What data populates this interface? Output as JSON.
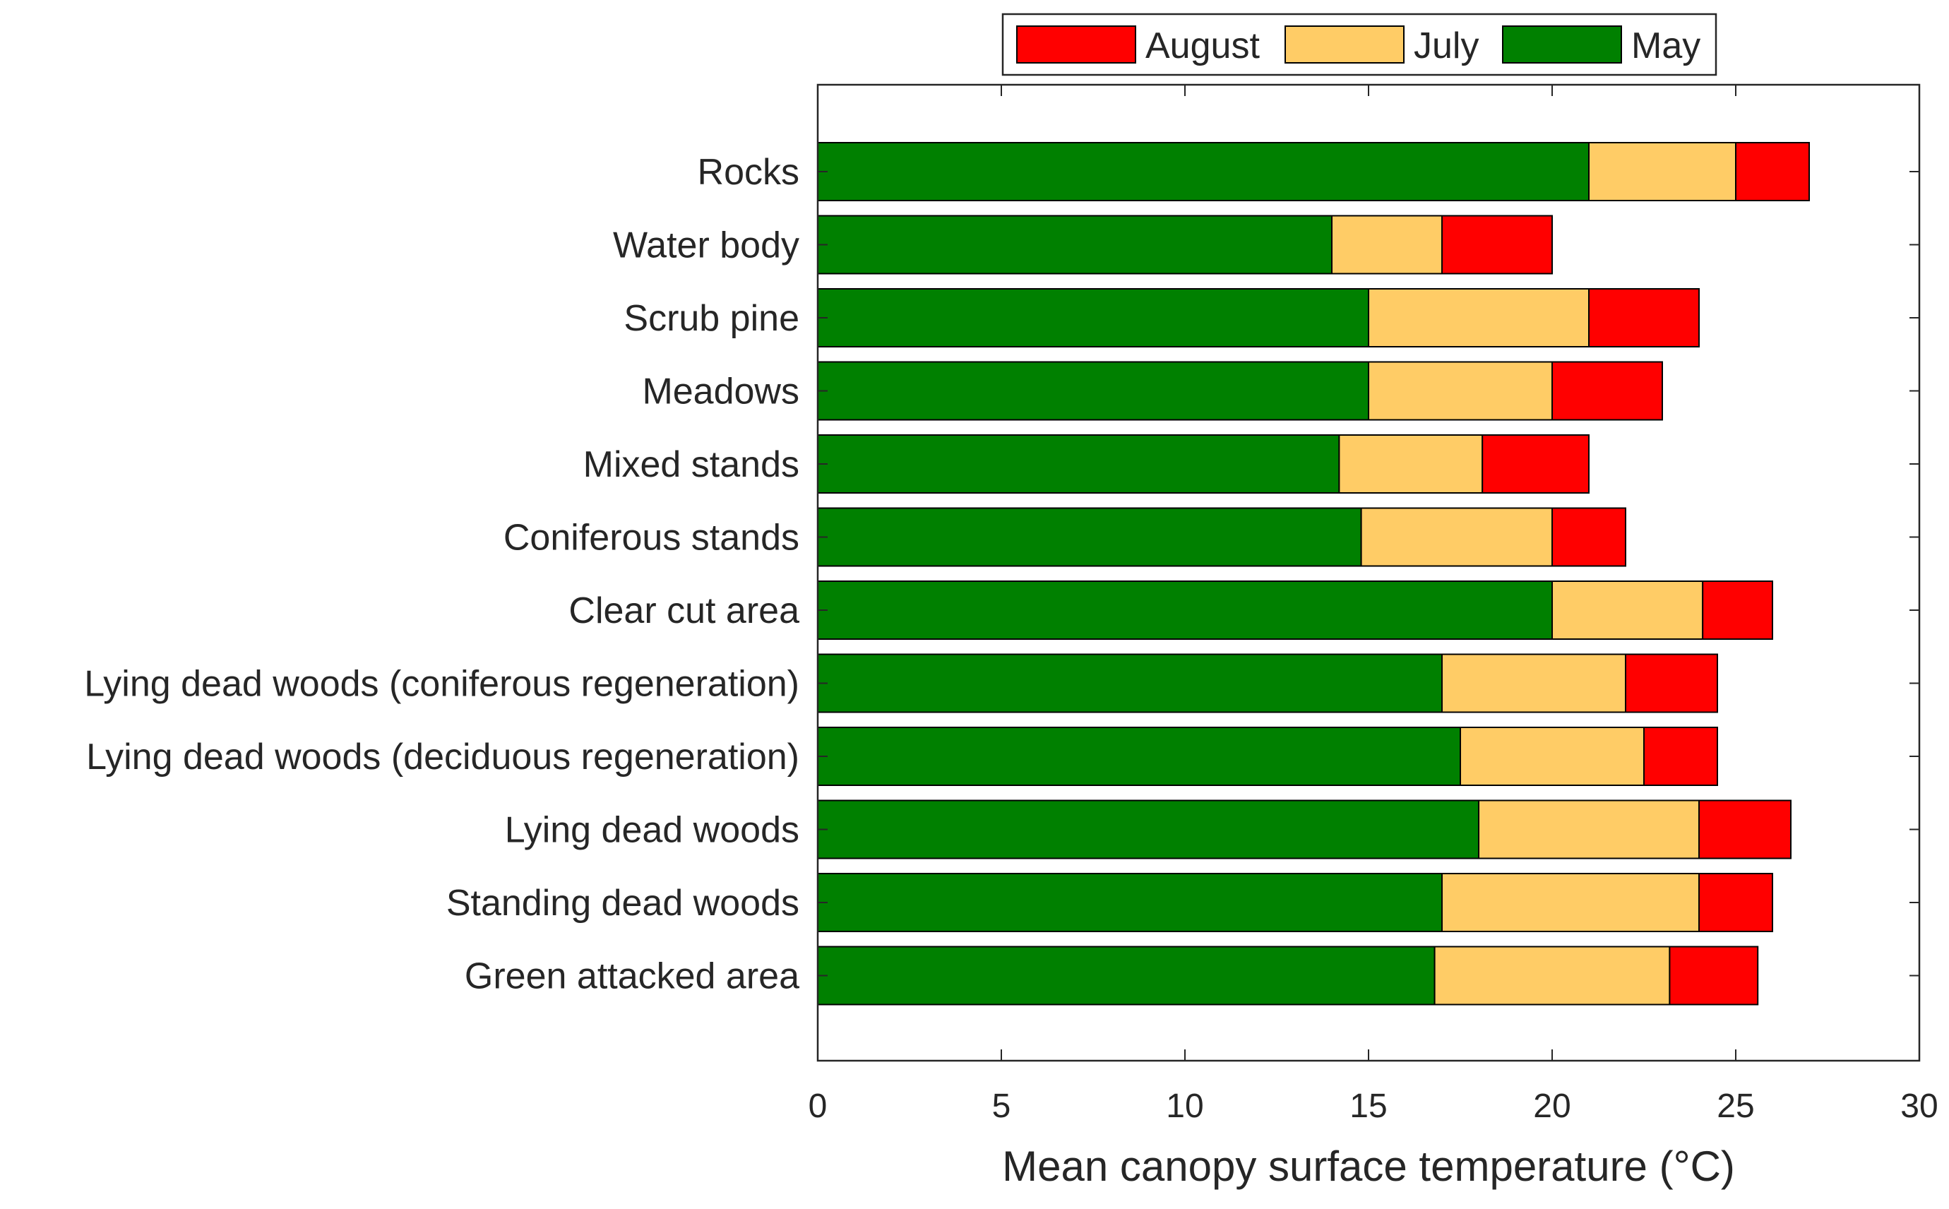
{
  "chart_data": {
    "type": "bar",
    "orientation": "horizontal",
    "stacked": true,
    "categories": [
      "Rocks",
      "Water body",
      "Scrub pine",
      "Meadows",
      "Mixed stands",
      "Coniferous stands",
      "Clear cut area",
      "Lying dead woods (coniferous regeneration)",
      "Lying dead woods (deciduous regeneration)",
      "Lying dead woods",
      "Standing dead woods",
      "Green attacked area"
    ],
    "series": [
      {
        "name": "May",
        "color": "#008000",
        "values": [
          21,
          14,
          15,
          15,
          14.2,
          14.8,
          20,
          17,
          17.5,
          18,
          17,
          16.8
        ]
      },
      {
        "name": "July",
        "color": "#FFCC66",
        "values": [
          4,
          3,
          6,
          5,
          3.9,
          5.2,
          4.1,
          5,
          5,
          6,
          7,
          6.4
        ]
      },
      {
        "name": "August",
        "color": "#FF0000",
        "values": [
          2,
          3,
          3,
          3,
          2.9,
          2,
          1.9,
          2.5,
          2,
          2.5,
          2,
          2.4
        ]
      }
    ],
    "legend": {
      "placement": "top",
      "order": [
        "August",
        "July",
        "May"
      ]
    },
    "xlabel": "Mean canopy surface temperature (°C)",
    "ylabel": "",
    "xlim": [
      0,
      30
    ],
    "xticks": [
      "0",
      "5",
      "10",
      "15",
      "20",
      "25",
      "30"
    ],
    "grid": false
  }
}
